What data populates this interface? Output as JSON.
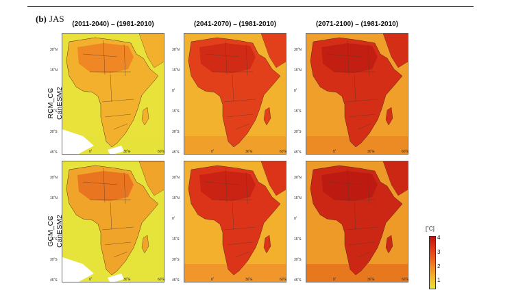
{
  "panel": {
    "letter": "(b)",
    "season": "JAS"
  },
  "columns": [
    {
      "title": "(2011-2040) – (1981-2010)"
    },
    {
      "title": "(2041-2070) – (1981-2010)"
    },
    {
      "title": "(2071-2100) – (1981-2010)"
    }
  ],
  "rows": [
    {
      "label_line1": "RCM_CC",
      "label_line2": "CanESM2"
    },
    {
      "label_line1": "GCM_CC",
      "label_line2": "CanESM2"
    }
  ],
  "axes": {
    "lat_labels": [
      "30˚N",
      "15˚N",
      "0˚",
      "15˚S",
      "30˚S",
      "45˚S"
    ],
    "lon_labels": [
      "0˚",
      "30˚E",
      "60˚E"
    ]
  },
  "colorbar": {
    "unit": "[˚C]",
    "ticks": [
      "4",
      "3",
      "2",
      "1"
    ],
    "colors": [
      "#bd1212",
      "#e03216",
      "#ec5a1c",
      "#f18a22",
      "#f4b42c",
      "#e6e43a"
    ]
  },
  "maps": [
    {
      "name": "rcm-2011-2040",
      "ocean": "#e8e23a",
      "land": "#f2b02c",
      "hot": "#ec7a22",
      "south": "#e7e23a",
      "ice": true
    },
    {
      "name": "rcm-2041-2070",
      "ocean": "#f3b22e",
      "land": "#e2401a",
      "hot": "#cc2414",
      "south": "#f0a02a",
      "ice": false
    },
    {
      "name": "rcm-2071-2100",
      "ocean": "#f0a02a",
      "land": "#d42e16",
      "hot": "#bd1a12",
      "south": "#ec8a24",
      "ice": false
    },
    {
      "name": "gcm-2011-2040",
      "ocean": "#e6e43a",
      "land": "#f0a42a",
      "hot": "#e8661e",
      "south": "#e6e43a",
      "ice": true
    },
    {
      "name": "gcm-2041-2070",
      "ocean": "#f2b02c",
      "land": "#dc3418",
      "hot": "#c41e12",
      "south": "#f0962a",
      "ice": false
    },
    {
      "name": "gcm-2071-2100",
      "ocean": "#ee9a28",
      "land": "#cc2614",
      "hot": "#b81812",
      "south": "#e8781e",
      "ice": false
    }
  ]
}
